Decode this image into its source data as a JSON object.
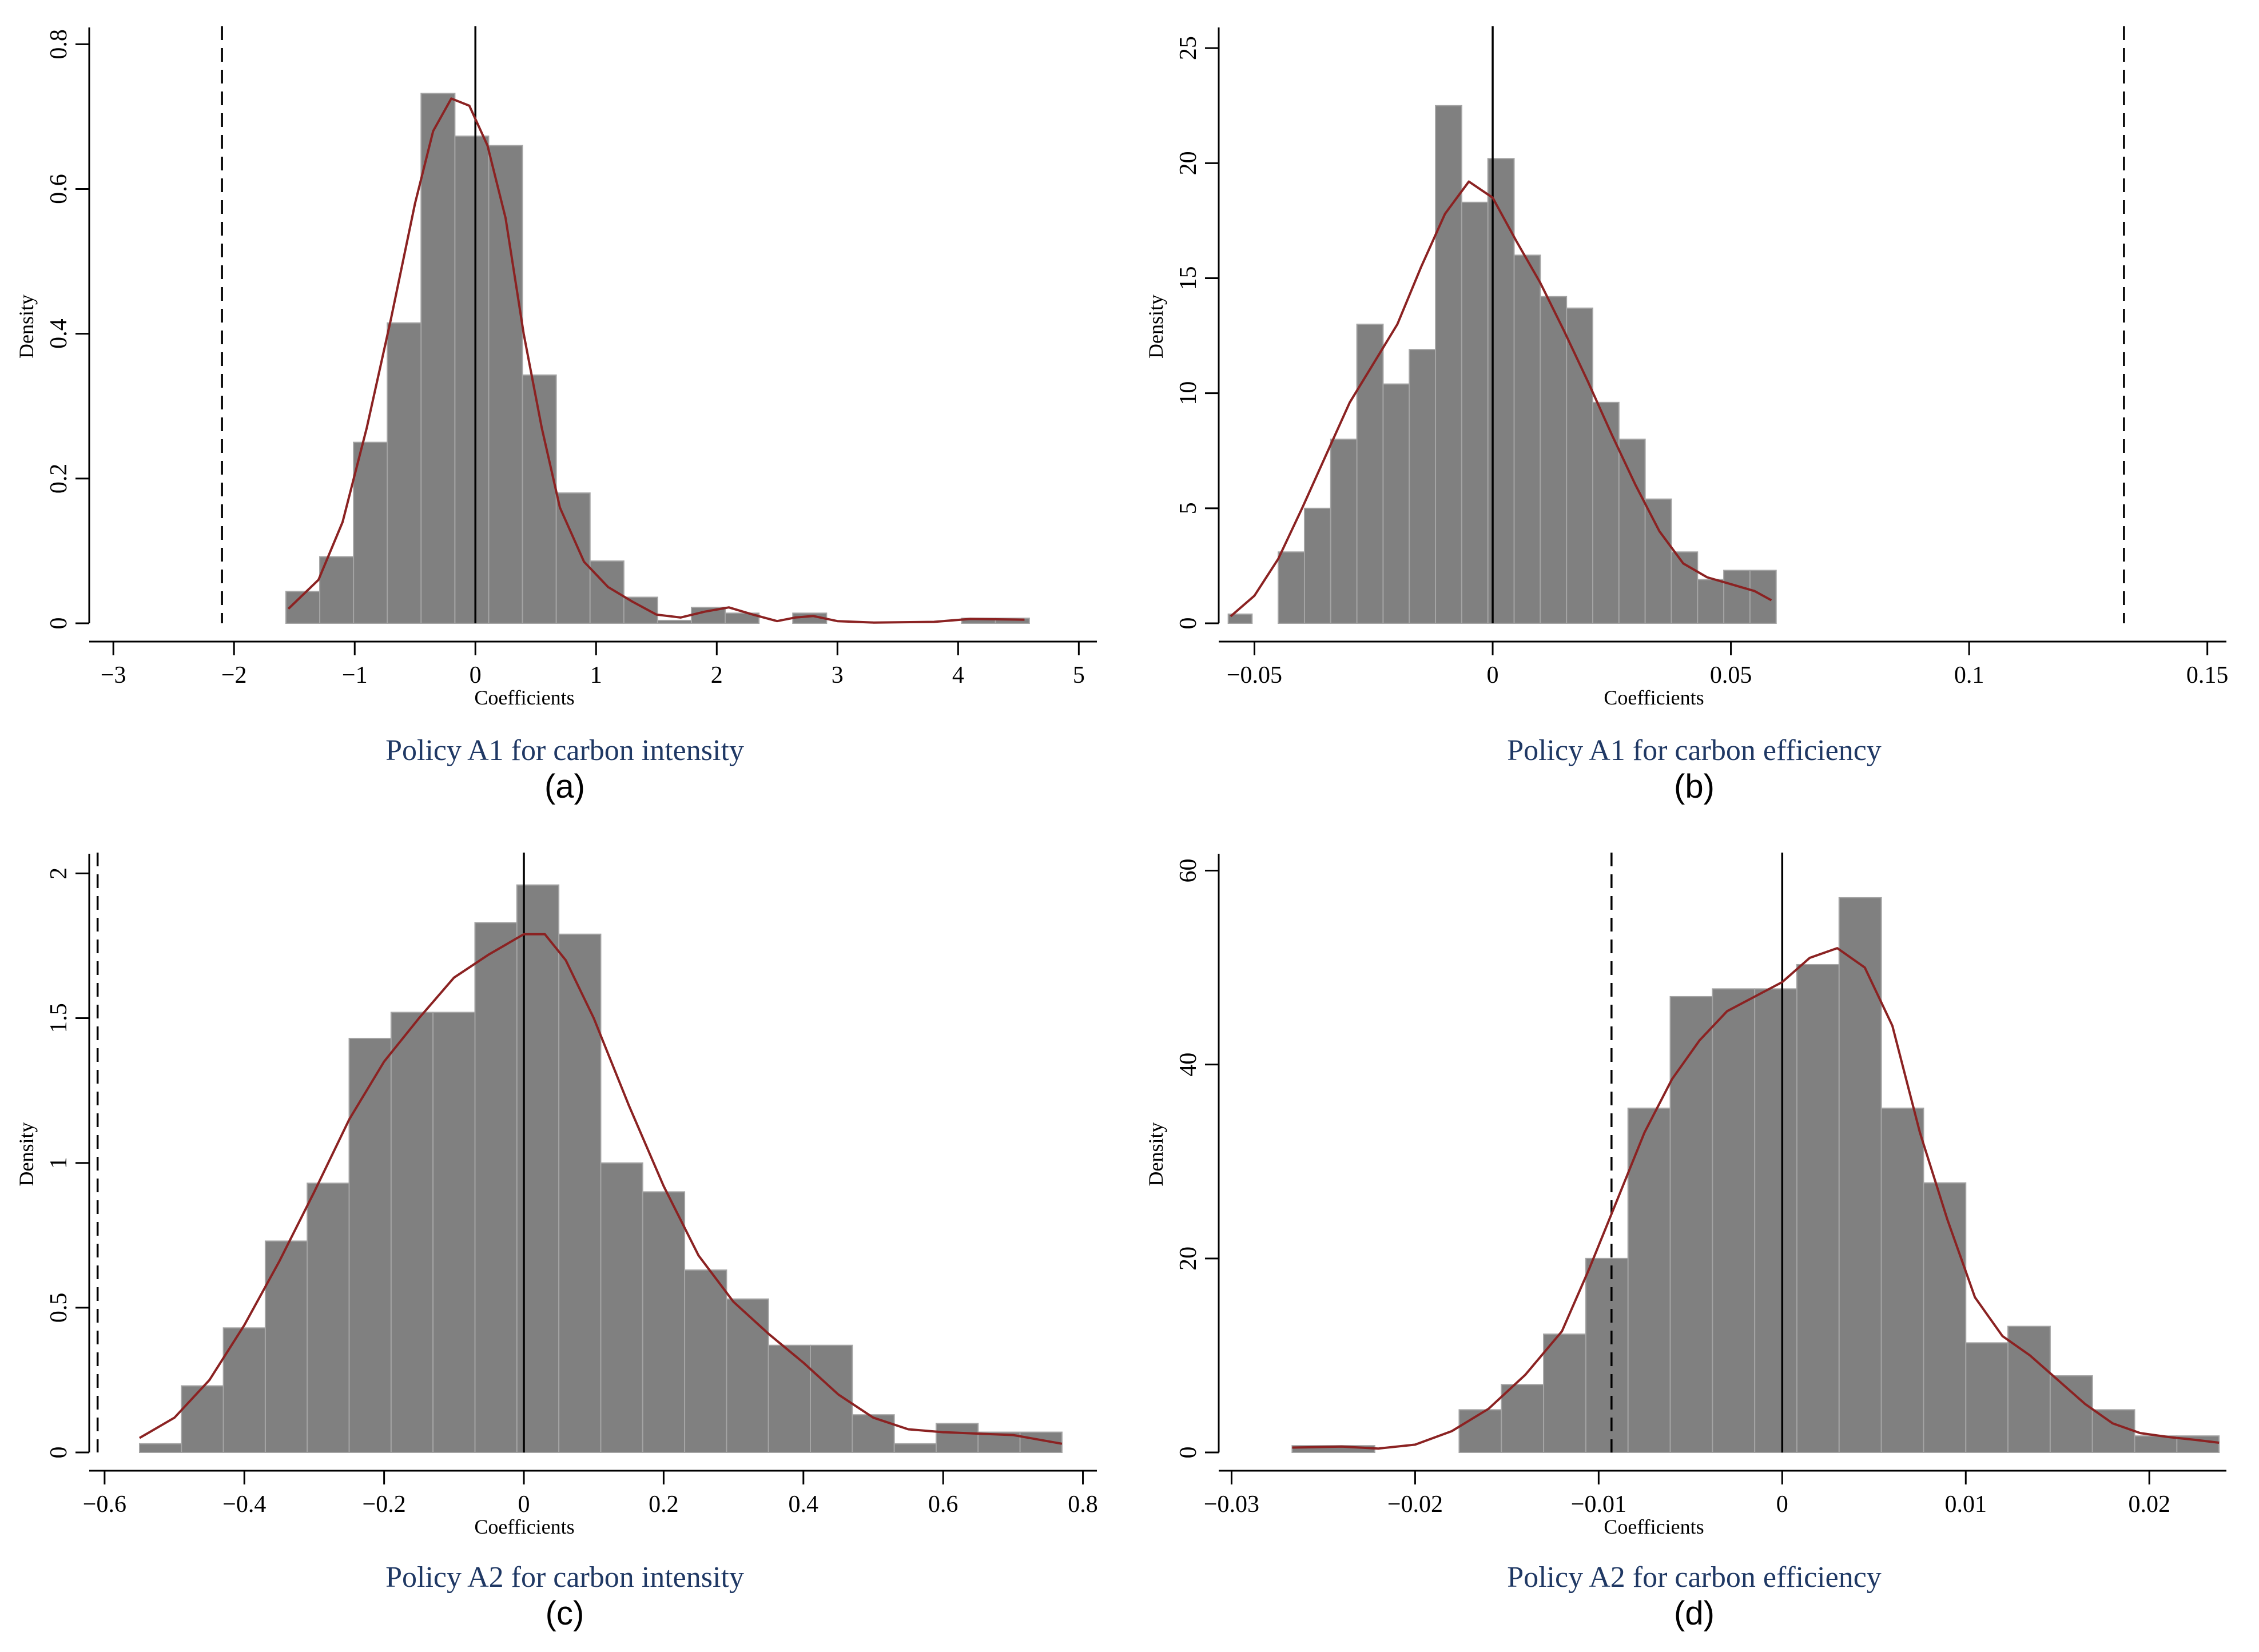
{
  "chart_data": [
    {
      "panel_id": "a",
      "type": "bar",
      "title": "Policy A1 for carbon intensity",
      "label": "(a)",
      "xlabel": "Coefficients",
      "ylabel": "Density",
      "xlim": [
        -3.2,
        5.15
      ],
      "ylim": [
        0,
        0.82
      ],
      "xticks": [
        -3,
        -2,
        -1,
        0,
        1,
        2,
        3,
        4,
        5
      ],
      "xtick_labels": [
        "−3",
        "−2",
        "−1",
        "0",
        "1",
        "2",
        "3",
        "4",
        "5"
      ],
      "yticks": [
        0,
        0.2,
        0.4,
        0.6,
        0.8
      ],
      "ytick_labels": [
        "0",
        "0.2",
        "0.4",
        "0.6",
        "0.8"
      ],
      "bins": [
        [
          -1.57,
          -1.29,
          0.044
        ],
        [
          -1.29,
          -1.01,
          0.092
        ],
        [
          -1.01,
          -0.73,
          0.25
        ],
        [
          -0.73,
          -0.45,
          0.415
        ],
        [
          -0.45,
          -0.17,
          0.732
        ],
        [
          -0.17,
          0.11,
          0.673
        ],
        [
          0.11,
          0.39,
          0.66
        ],
        [
          0.39,
          0.67,
          0.343
        ],
        [
          0.67,
          0.95,
          0.18
        ],
        [
          0.95,
          1.23,
          0.086
        ],
        [
          1.23,
          1.51,
          0.036
        ],
        [
          1.51,
          1.79,
          0.004
        ],
        [
          1.79,
          2.07,
          0.022
        ],
        [
          2.07,
          2.35,
          0.014
        ],
        [
          2.63,
          2.91,
          0.014
        ],
        [
          4.03,
          4.31,
          0.007
        ],
        [
          4.31,
          4.59,
          0.007
        ]
      ],
      "kde": [
        [
          -1.55,
          0.02
        ],
        [
          -1.3,
          0.06
        ],
        [
          -1.1,
          0.14
        ],
        [
          -0.9,
          0.27
        ],
        [
          -0.7,
          0.42
        ],
        [
          -0.5,
          0.58
        ],
        [
          -0.35,
          0.68
        ],
        [
          -0.2,
          0.725
        ],
        [
          -0.05,
          0.715
        ],
        [
          0.1,
          0.66
        ],
        [
          0.25,
          0.56
        ],
        [
          0.4,
          0.4
        ],
        [
          0.55,
          0.27
        ],
        [
          0.7,
          0.16
        ],
        [
          0.9,
          0.085
        ],
        [
          1.1,
          0.05
        ],
        [
          1.3,
          0.03
        ],
        [
          1.5,
          0.012
        ],
        [
          1.7,
          0.008
        ],
        [
          1.9,
          0.016
        ],
        [
          2.1,
          0.022
        ],
        [
          2.3,
          0.012
        ],
        [
          2.5,
          0.003
        ],
        [
          2.65,
          0.008
        ],
        [
          2.8,
          0.01
        ],
        [
          3.0,
          0.003
        ],
        [
          3.3,
          0.001
        ],
        [
          3.8,
          0.002
        ],
        [
          4.1,
          0.006
        ],
        [
          4.55,
          0.005
        ]
      ],
      "solid_line_x": 0,
      "dashed_line_x": -2.1
    },
    {
      "panel_id": "b",
      "type": "bar",
      "title": "Policy A1 for carbon efficiency",
      "label": "(b)",
      "xlabel": "Coefficients",
      "ylabel": "Density",
      "xlim": [
        -0.0575,
        0.154
      ],
      "ylim": [
        0,
        25.8
      ],
      "xticks": [
        -0.05,
        0,
        0.05,
        0.1,
        0.15
      ],
      "xtick_labels": [
        "−0.05",
        "0",
        "0.05",
        "0.1",
        "0.15"
      ],
      "yticks": [
        0,
        5,
        10,
        15,
        20,
        25
      ],
      "ytick_labels": [
        "0",
        "5",
        "10",
        "15",
        "20",
        "25"
      ],
      "bins": [
        [
          -0.0555,
          -0.0505,
          0.4
        ],
        [
          -0.045,
          -0.0395,
          3.1
        ],
        [
          -0.0395,
          -0.034,
          5.0
        ],
        [
          -0.034,
          -0.0285,
          8.0
        ],
        [
          -0.0285,
          -0.023,
          13.0
        ],
        [
          -0.023,
          -0.0175,
          10.4
        ],
        [
          -0.0175,
          -0.012,
          11.9
        ],
        [
          -0.012,
          -0.0065,
          22.5
        ],
        [
          -0.0065,
          -0.001,
          18.3
        ],
        [
          -0.001,
          0.0045,
          20.2
        ],
        [
          0.0045,
          0.01,
          16.0
        ],
        [
          0.01,
          0.0155,
          14.2
        ],
        [
          0.0155,
          0.021,
          13.7
        ],
        [
          0.021,
          0.0265,
          9.6
        ],
        [
          0.0265,
          0.032,
          8.0
        ],
        [
          0.032,
          0.0375,
          5.4
        ],
        [
          0.0375,
          0.043,
          3.1
        ],
        [
          0.043,
          0.0485,
          1.9
        ],
        [
          0.0485,
          0.054,
          2.3
        ],
        [
          0.054,
          0.0595,
          2.3
        ]
      ],
      "kde": [
        [
          -0.055,
          0.3
        ],
        [
          -0.05,
          1.2
        ],
        [
          -0.045,
          2.8
        ],
        [
          -0.04,
          5.0
        ],
        [
          -0.035,
          7.3
        ],
        [
          -0.03,
          9.6
        ],
        [
          -0.025,
          11.3
        ],
        [
          -0.02,
          13.0
        ],
        [
          -0.015,
          15.5
        ],
        [
          -0.01,
          17.8
        ],
        [
          -0.005,
          19.2
        ],
        [
          0,
          18.5
        ],
        [
          0.005,
          16.6
        ],
        [
          0.01,
          14.8
        ],
        [
          0.015,
          12.7
        ],
        [
          0.02,
          10.5
        ],
        [
          0.025,
          8.2
        ],
        [
          0.03,
          6.0
        ],
        [
          0.035,
          4.0
        ],
        [
          0.04,
          2.6
        ],
        [
          0.045,
          2.0
        ],
        [
          0.05,
          1.7
        ],
        [
          0.055,
          1.4
        ],
        [
          0.0585,
          1.0
        ]
      ],
      "solid_line_x": 0,
      "dashed_line_x": 0.1325
    },
    {
      "panel_id": "c",
      "type": "bar",
      "title": "Policy A2 for carbon intensity",
      "label": "(c)",
      "xlabel": "Coefficients",
      "ylabel": "Density",
      "xlim": [
        -0.622,
        0.82
      ],
      "ylim": [
        0,
        2.06
      ],
      "xticks": [
        -0.6,
        -0.4,
        -0.2,
        0,
        0.2,
        0.4,
        0.6,
        0.8
      ],
      "xtick_labels": [
        "−0.6",
        "−0.4",
        "−0.2",
        "0",
        "0.2",
        "0.4",
        "0.6",
        "0.8"
      ],
      "yticks": [
        0,
        0.5,
        1,
        1.5,
        2
      ],
      "ytick_labels": [
        "0",
        "0.5",
        "1",
        "1.5",
        "2"
      ],
      "bins": [
        [
          -0.55,
          -0.49,
          0.03
        ],
        [
          -0.49,
          -0.43,
          0.23
        ],
        [
          -0.43,
          -0.37,
          0.43
        ],
        [
          -0.37,
          -0.31,
          0.73
        ],
        [
          -0.31,
          -0.25,
          0.93
        ],
        [
          -0.25,
          -0.19,
          1.43
        ],
        [
          -0.19,
          -0.13,
          1.52
        ],
        [
          -0.13,
          -0.07,
          1.52
        ],
        [
          -0.07,
          -0.01,
          1.83
        ],
        [
          -0.01,
          0.05,
          1.96
        ],
        [
          0.05,
          0.11,
          1.79
        ],
        [
          0.11,
          0.17,
          1.0
        ],
        [
          0.17,
          0.23,
          0.9
        ],
        [
          0.23,
          0.29,
          0.63
        ],
        [
          0.29,
          0.35,
          0.53
        ],
        [
          0.35,
          0.41,
          0.37
        ],
        [
          0.41,
          0.47,
          0.37
        ],
        [
          0.47,
          0.53,
          0.13
        ],
        [
          0.53,
          0.59,
          0.03
        ],
        [
          0.59,
          0.65,
          0.1
        ],
        [
          0.65,
          0.71,
          0.07
        ],
        [
          0.71,
          0.77,
          0.07
        ]
      ],
      "kde": [
        [
          -0.55,
          0.05
        ],
        [
          -0.5,
          0.12
        ],
        [
          -0.45,
          0.25
        ],
        [
          -0.4,
          0.44
        ],
        [
          -0.35,
          0.66
        ],
        [
          -0.3,
          0.9
        ],
        [
          -0.25,
          1.15
        ],
        [
          -0.2,
          1.35
        ],
        [
          -0.15,
          1.5
        ],
        [
          -0.1,
          1.64
        ],
        [
          -0.05,
          1.72
        ],
        [
          0,
          1.79
        ],
        [
          0.03,
          1.79
        ],
        [
          0.06,
          1.7
        ],
        [
          0.1,
          1.5
        ],
        [
          0.15,
          1.2
        ],
        [
          0.2,
          0.92
        ],
        [
          0.25,
          0.68
        ],
        [
          0.3,
          0.52
        ],
        [
          0.35,
          0.41
        ],
        [
          0.4,
          0.31
        ],
        [
          0.45,
          0.2
        ],
        [
          0.5,
          0.12
        ],
        [
          0.55,
          0.08
        ],
        [
          0.6,
          0.07
        ],
        [
          0.65,
          0.065
        ],
        [
          0.7,
          0.06
        ],
        [
          0.77,
          0.03
        ]
      ],
      "solid_line_x": 0,
      "dashed_line_x": -0.61
    },
    {
      "panel_id": "d",
      "type": "bar",
      "title": "Policy A2 for carbon efficiency",
      "label": "(d)",
      "xlabel": "Coefficients",
      "ylabel": "Density",
      "xlim": [
        -0.0307,
        0.0242
      ],
      "ylim": [
        0,
        61.5
      ],
      "xticks": [
        -0.03,
        -0.02,
        -0.01,
        0,
        0.01,
        0.02
      ],
      "xtick_labels": [
        "−0.03",
        "−0.02",
        "−0.01",
        "0",
        "0.01",
        "0.02"
      ],
      "yticks": [
        0,
        20,
        40,
        60
      ],
      "ytick_labels": [
        "0",
        "20",
        "40",
        "60"
      ],
      "bins": [
        [
          -0.0267,
          -0.0222,
          0.7
        ],
        [
          -0.0176,
          -0.0153,
          4.4
        ],
        [
          -0.0153,
          -0.013,
          7.0
        ],
        [
          -0.013,
          -0.0107,
          12.2
        ],
        [
          -0.0107,
          -0.0084,
          20.0
        ],
        [
          -0.0084,
          -0.0061,
          35.5
        ],
        [
          -0.0061,
          -0.0038,
          47.0
        ],
        [
          -0.0038,
          -0.0015,
          47.8
        ],
        [
          -0.0015,
          0.0008,
          47.8
        ],
        [
          0.0008,
          0.0031,
          50.3
        ],
        [
          0.0031,
          0.0054,
          57.2
        ],
        [
          0.0054,
          0.0077,
          35.5
        ],
        [
          0.0077,
          0.01,
          27.8
        ],
        [
          0.01,
          0.0123,
          11.3
        ],
        [
          0.0123,
          0.0146,
          13.0
        ],
        [
          0.0146,
          0.0169,
          7.9
        ],
        [
          0.0169,
          0.0192,
          4.4
        ],
        [
          0.0192,
          0.0215,
          1.7
        ],
        [
          0.0215,
          0.0238,
          1.7
        ]
      ],
      "kde": [
        [
          -0.0267,
          0.5
        ],
        [
          -0.024,
          0.6
        ],
        [
          -0.022,
          0.4
        ],
        [
          -0.02,
          0.8
        ],
        [
          -0.018,
          2.2
        ],
        [
          -0.016,
          4.5
        ],
        [
          -0.014,
          8.0
        ],
        [
          -0.012,
          12.5
        ],
        [
          -0.0105,
          19.0
        ],
        [
          -0.009,
          26.0
        ],
        [
          -0.0075,
          33.0
        ],
        [
          -0.006,
          38.5
        ],
        [
          -0.0045,
          42.5
        ],
        [
          -0.003,
          45.5
        ],
        [
          -0.0015,
          47.0
        ],
        [
          0,
          48.5
        ],
        [
          0.0015,
          51.0
        ],
        [
          0.003,
          52.0
        ],
        [
          0.0045,
          50.0
        ],
        [
          0.006,
          44.0
        ],
        [
          0.0075,
          33.0
        ],
        [
          0.009,
          24.0
        ],
        [
          0.0105,
          16.0
        ],
        [
          0.012,
          12.0
        ],
        [
          0.0135,
          10.0
        ],
        [
          0.015,
          7.5
        ],
        [
          0.0165,
          5.0
        ],
        [
          0.018,
          3.0
        ],
        [
          0.0195,
          2.0
        ],
        [
          0.021,
          1.6
        ],
        [
          0.0225,
          1.3
        ],
        [
          0.0238,
          1.0
        ]
      ],
      "solid_line_x": 0,
      "dashed_line_x": -0.0093
    }
  ],
  "colors": {
    "bar": "#808080",
    "bar_edge": "#a4a4a4",
    "kde": "#8b2222",
    "axis": "#000000"
  }
}
